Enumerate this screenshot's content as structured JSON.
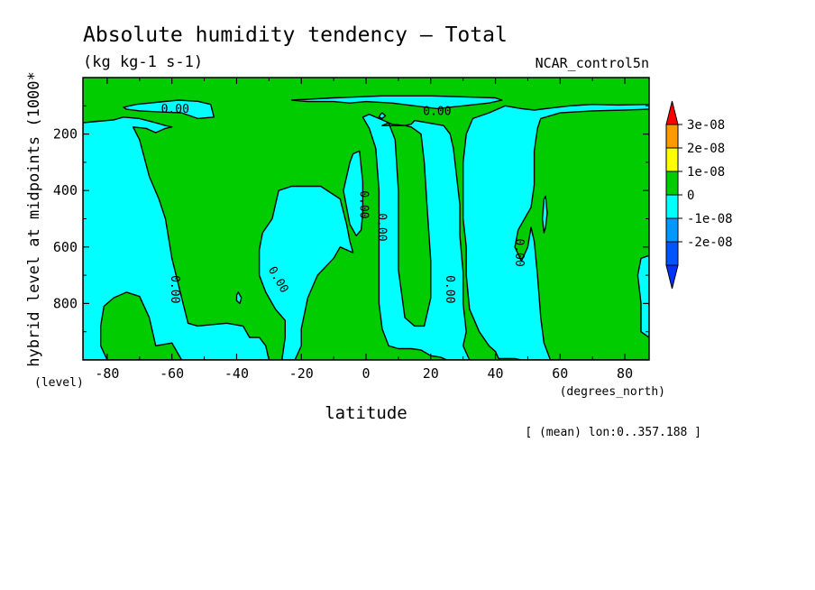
{
  "chart_data": {
    "type": "heatmap",
    "title": "Absolute humidity tendency — Total",
    "subtitle": "(kg kg-1 s-1)",
    "dataset_label": "NCAR_control5n",
    "xlabel": "latitude",
    "x_units": "(degrees_north)",
    "ylabel": "hybrid level at midpoints (1000*",
    "y_units": "(level)",
    "footnote": "[ (mean) lon:0..357.188 ]",
    "xlim": [
      -87.5,
      87.5
    ],
    "ylim": [
      0,
      1000
    ],
    "y_inverted": true,
    "x_ticks": [
      {
        "value": -80,
        "label": "-80"
      },
      {
        "value": -60,
        "label": "-60"
      },
      {
        "value": -40,
        "label": "-40"
      },
      {
        "value": -20,
        "label": "-20"
      },
      {
        "value": 0,
        "label": "0"
      },
      {
        "value": 20,
        "label": "20"
      },
      {
        "value": 40,
        "label": "40"
      },
      {
        "value": 60,
        "label": "60"
      },
      {
        "value": 80,
        "label": "80"
      }
    ],
    "y_ticks": [
      {
        "value": 200,
        "label": "200"
      },
      {
        "value": 400,
        "label": "400"
      },
      {
        "value": 600,
        "label": "600"
      },
      {
        "value": 800,
        "label": "800"
      }
    ],
    "contour_labels": [
      {
        "text": "0.00",
        "x": -59,
        "y": 110,
        "rotation": 0
      },
      {
        "text": "0.00",
        "x": 22,
        "y": 118,
        "rotation": 0
      },
      {
        "text": "0.00",
        "x": -59,
        "y": 750,
        "rotation": 90
      },
      {
        "text": "0.00",
        "x": -27,
        "y": 715,
        "rotation": 60
      },
      {
        "text": "0.00",
        "x": -0.5,
        "y": 450,
        "rotation": 90
      },
      {
        "text": "0.00",
        "x": 5,
        "y": 530,
        "rotation": 90
      },
      {
        "text": "0.00",
        "x": 26,
        "y": 750,
        "rotation": 90
      },
      {
        "text": "0.00",
        "x": 47.5,
        "y": 620,
        "rotation": 90
      }
    ],
    "regions": [
      {
        "level": "negative",
        "color": "#00ffff",
        "points": [
          [
            -87.5,
            160
          ],
          [
            -83,
            155
          ],
          [
            -78,
            150
          ],
          [
            -75,
            140
          ],
          [
            -70,
            145
          ],
          [
            -65,
            160
          ],
          [
            -62,
            170
          ],
          [
            -60,
            175
          ],
          [
            -62,
            180
          ],
          [
            -65,
            195
          ],
          [
            -68,
            180
          ],
          [
            -72,
            175
          ],
          [
            -70,
            220
          ],
          [
            -67,
            350
          ],
          [
            -64,
            430
          ],
          [
            -62,
            500
          ],
          [
            -60,
            640
          ],
          [
            -57,
            780
          ],
          [
            -55,
            870
          ],
          [
            -52,
            880
          ],
          [
            -48,
            875
          ],
          [
            -43,
            870
          ],
          [
            -38,
            880
          ],
          [
            -36,
            920
          ],
          [
            -33,
            920
          ],
          [
            -31,
            950
          ],
          [
            -30,
            1000
          ],
          [
            -87.5,
            1000
          ]
        ]
      },
      {
        "level": "positive",
        "color": "#00cc00",
        "points": [
          [
            -80,
            1000
          ],
          [
            -82,
            950
          ],
          [
            -82,
            880
          ],
          [
            -81,
            810
          ],
          [
            -78,
            780
          ],
          [
            -74,
            760
          ],
          [
            -70,
            775
          ],
          [
            -67,
            850
          ],
          [
            -66,
            900
          ],
          [
            -65,
            950
          ],
          [
            -60,
            940
          ],
          [
            -57,
            1000
          ]
        ]
      },
      {
        "level": "negative",
        "color": "#00ffff",
        "points": [
          [
            -75,
            105
          ],
          [
            -71,
            95
          ],
          [
            -65,
            88
          ],
          [
            -58,
            80
          ],
          [
            -52,
            84
          ],
          [
            -48,
            95
          ],
          [
            -47,
            140
          ],
          [
            -52,
            145
          ],
          [
            -57,
            125
          ],
          [
            -63,
            122
          ],
          [
            -70,
            118
          ],
          [
            -74,
            112
          ]
        ]
      },
      {
        "level": "negative",
        "color": "#00ffff",
        "points": [
          [
            -23,
            80
          ],
          [
            -10,
            72
          ],
          [
            5,
            65
          ],
          [
            20,
            65
          ],
          [
            35,
            70
          ],
          [
            40,
            72
          ],
          [
            42,
            80
          ],
          [
            38,
            90
          ],
          [
            30,
            100
          ],
          [
            22,
            110
          ],
          [
            15,
            100
          ],
          [
            8,
            90
          ],
          [
            0,
            85
          ],
          [
            -5,
            90
          ],
          [
            -10,
            85
          ],
          [
            -18,
            85
          ]
        ]
      },
      {
        "level": "negative",
        "color": "#00ffff",
        "points": [
          [
            -1,
            140
          ],
          [
            1,
            130
          ],
          [
            3,
            140
          ],
          [
            5,
            150
          ],
          [
            8,
            165
          ],
          [
            12,
            170
          ],
          [
            14,
            165
          ],
          [
            15,
            152
          ],
          [
            20,
            162
          ],
          [
            24,
            170
          ],
          [
            26,
            200
          ],
          [
            27,
            250
          ],
          [
            28,
            350
          ],
          [
            29,
            450
          ],
          [
            29,
            560
          ],
          [
            30,
            690
          ],
          [
            30,
            800
          ],
          [
            31,
            900
          ],
          [
            30,
            950
          ],
          [
            32,
            1000
          ],
          [
            25,
            1000
          ],
          [
            23,
            990
          ],
          [
            20,
            985
          ],
          [
            17,
            965
          ],
          [
            14,
            960
          ],
          [
            10,
            960
          ],
          [
            7,
            950
          ],
          [
            5,
            890
          ],
          [
            4,
            800
          ],
          [
            4,
            700
          ],
          [
            4,
            550
          ],
          [
            4,
            400
          ],
          [
            3,
            250
          ],
          [
            1,
            180
          ]
        ]
      },
      {
        "level": "positive",
        "color": "#00cc00",
        "points": [
          [
            5,
            170
          ],
          [
            7,
            160
          ],
          [
            9,
            220
          ],
          [
            10,
            400
          ],
          [
            10,
            550
          ],
          [
            10,
            680
          ],
          [
            12,
            850
          ],
          [
            15,
            880
          ],
          [
            18,
            880
          ],
          [
            20,
            780
          ],
          [
            20,
            650
          ],
          [
            19,
            480
          ],
          [
            18,
            300
          ],
          [
            17,
            200
          ],
          [
            14,
            175
          ],
          [
            12,
            170
          ]
        ]
      },
      {
        "level": "negative",
        "color": "#00ffff",
        "points": [
          [
            -27,
            400
          ],
          [
            -23,
            385
          ],
          [
            -14,
            385
          ],
          [
            -8,
            430
          ],
          [
            -6,
            520
          ],
          [
            -5,
            580
          ],
          [
            -4,
            620
          ],
          [
            -8,
            600
          ],
          [
            -10,
            640
          ],
          [
            -15,
            700
          ],
          [
            -18,
            780
          ],
          [
            -20,
            890
          ],
          [
            -20,
            950
          ],
          [
            -22,
            1000
          ],
          [
            -26,
            1000
          ],
          [
            -25,
            920
          ],
          [
            -25,
            860
          ],
          [
            -28,
            820
          ],
          [
            -31,
            760
          ],
          [
            -33,
            700
          ],
          [
            -33,
            610
          ],
          [
            -32,
            550
          ],
          [
            -29,
            500
          ]
        ]
      },
      {
        "level": "negative",
        "color": "#00ffff",
        "points": [
          [
            -7,
            400
          ],
          [
            -6,
            350
          ],
          [
            -5,
            300
          ],
          [
            -4,
            270
          ],
          [
            -2,
            260
          ],
          [
            -1,
            370
          ],
          [
            -1,
            480
          ],
          [
            -1.5,
            540
          ],
          [
            -3,
            560
          ],
          [
            -5,
            520
          ]
        ]
      },
      {
        "level": "negative",
        "color": "#00ffff",
        "points": [
          [
            33,
            145
          ],
          [
            38,
            125
          ],
          [
            43,
            100
          ],
          [
            48,
            110
          ],
          [
            52,
            115
          ],
          [
            57,
            108
          ],
          [
            63,
            100
          ],
          [
            70,
            95
          ],
          [
            78,
            97
          ],
          [
            87.5,
            95
          ],
          [
            87.5,
            1000
          ],
          [
            48,
            1000
          ],
          [
            46,
            995
          ],
          [
            41,
            995
          ],
          [
            40,
            970
          ],
          [
            38,
            950
          ],
          [
            35,
            900
          ],
          [
            32,
            820
          ],
          [
            31,
            700
          ],
          [
            31,
            600
          ],
          [
            30,
            500
          ],
          [
            30,
            400
          ],
          [
            30,
            300
          ],
          [
            31,
            200
          ]
        ]
      },
      {
        "level": "positive",
        "color": "#00cc00",
        "points": [
          [
            54,
            145
          ],
          [
            60,
            125
          ],
          [
            70,
            118
          ],
          [
            80,
            115
          ],
          [
            87.5,
            112
          ],
          [
            87.5,
            630
          ],
          [
            85,
            640
          ],
          [
            84,
            700
          ],
          [
            85,
            800
          ],
          [
            85,
            900
          ],
          [
            87.5,
            920
          ],
          [
            87.5,
            1000
          ],
          [
            57,
            1000
          ],
          [
            55,
            940
          ],
          [
            54,
            850
          ],
          [
            53,
            700
          ],
          [
            52,
            580
          ],
          [
            51,
            530
          ],
          [
            50,
            600
          ],
          [
            48,
            650
          ],
          [
            46,
            600
          ],
          [
            47,
            540
          ],
          [
            49,
            500
          ],
          [
            51,
            460
          ],
          [
            52,
            380
          ],
          [
            52,
            260
          ],
          [
            53,
            180
          ]
        ]
      },
      {
        "level": "negative",
        "color": "#00ffff",
        "points": [
          [
            55,
            430
          ],
          [
            55.5,
            420
          ],
          [
            56,
            480
          ],
          [
            55.5,
            530
          ],
          [
            55,
            550
          ],
          [
            54.5,
            500
          ]
        ]
      },
      {
        "level": "negative",
        "color": "#00ffff",
        "points": [
          [
            4.5,
            130
          ],
          [
            5,
            125
          ],
          [
            6,
            135
          ],
          [
            5,
            145
          ],
          [
            4,
            140
          ]
        ]
      },
      {
        "level": "negative",
        "color": "#00ffff",
        "points": [
          [
            -40,
            770
          ],
          [
            -39.5,
            760
          ],
          [
            -38.5,
            780
          ],
          [
            -39,
            800
          ],
          [
            -40,
            790
          ]
        ]
      }
    ],
    "colorbar": {
      "levels": [
        {
          "label": "3e-08",
          "color": "#ff9900"
        },
        {
          "label": "2e-08",
          "color": "#ffff00"
        },
        {
          "label": "1e-08",
          "color": "#00cc00"
        },
        {
          "label": "0",
          "color": "#00ffff"
        },
        {
          "label": "-1e-08",
          "color": "#0099ff"
        },
        {
          "label": "-2e-08",
          "color": "#0055ff"
        }
      ],
      "top_arrow_color": "#ff0000",
      "bottom_arrow_color": "#0033ff",
      "boundary_labels": [
        "3e-08",
        "2e-08",
        "1e-08",
        "0",
        "-1e-08",
        "-2e-08"
      ]
    },
    "background_color": "#00cc00",
    "legend_placement": "right"
  }
}
